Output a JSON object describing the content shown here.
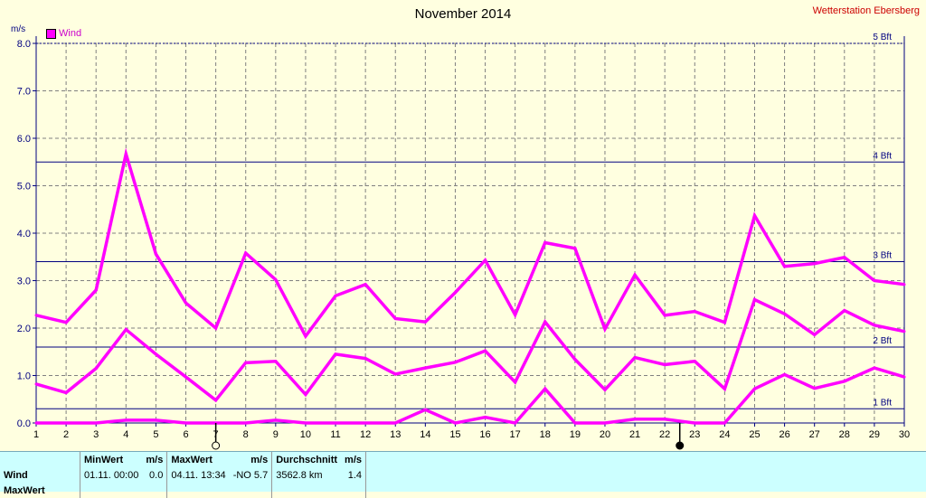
{
  "header": {
    "title": "November 2014",
    "station": "Wetterstation Ebersberg",
    "unit": "m/s"
  },
  "legend": {
    "label": "Wind",
    "color": "#ff00ff"
  },
  "chart_data": {
    "type": "line",
    "title": "November 2014",
    "ylabel": "m/s",
    "xlim": [
      1,
      30
    ],
    "ylim": [
      0,
      8
    ],
    "x": [
      1,
      2,
      3,
      4,
      5,
      6,
      7,
      8,
      9,
      10,
      11,
      12,
      13,
      14,
      15,
      16,
      17,
      18,
      19,
      20,
      21,
      22,
      23,
      24,
      25,
      26,
      27,
      28,
      29,
      30
    ],
    "x_tick_labels": [
      "1",
      "2",
      "3",
      "4",
      "5",
      "6",
      "7",
      "8",
      "9",
      "10",
      "11",
      "12",
      "13",
      "14",
      "15",
      "16",
      "17",
      "18",
      "19",
      "20",
      "21",
      "22",
      "23",
      "24",
      "25",
      "26",
      "27",
      "28",
      "29",
      "30"
    ],
    "y_ticks": [
      0,
      1,
      2,
      3,
      4,
      5,
      6,
      7,
      8
    ],
    "y_tick_labels": [
      "0.0",
      "1.0",
      "2.0",
      "3.0",
      "4.0",
      "5.0",
      "6.0",
      "7.0",
      "8.0"
    ],
    "grid": true,
    "legend_placement": "top-left",
    "series": [
      {
        "role": "max",
        "color": "#ff00ff",
        "values": [
          2.27,
          2.12,
          2.8,
          5.67,
          3.56,
          2.53,
          2.0,
          3.58,
          3.02,
          1.83,
          2.68,
          2.92,
          2.2,
          2.13,
          2.75,
          3.43,
          2.28,
          3.8,
          3.68,
          1.98,
          3.12,
          2.27,
          2.35,
          2.12,
          4.37,
          3.3,
          3.36,
          3.49,
          3.0,
          2.92
        ]
      },
      {
        "name": "Wind",
        "role": "mean",
        "color": "#ff00ff",
        "values": [
          0.82,
          0.64,
          1.15,
          1.97,
          1.45,
          0.97,
          0.48,
          1.27,
          1.3,
          0.6,
          1.45,
          1.36,
          1.03,
          1.16,
          1.28,
          1.52,
          0.86,
          2.13,
          1.34,
          0.7,
          1.38,
          1.23,
          1.3,
          0.72,
          2.6,
          2.3,
          1.86,
          2.37,
          2.06,
          1.93
        ]
      },
      {
        "role": "min",
        "color": "#ff00ff",
        "values": [
          0.0,
          0.0,
          0.0,
          0.06,
          0.06,
          0.0,
          0.0,
          0.0,
          0.06,
          0.0,
          0.0,
          0.0,
          0.0,
          0.28,
          0.0,
          0.12,
          0.0,
          0.72,
          0.0,
          0.0,
          0.08,
          0.08,
          0.0,
          0.0,
          0.72,
          1.02,
          0.73,
          0.88,
          1.16,
          0.97
        ]
      }
    ],
    "reference_lines": [
      {
        "label": "5 Bft",
        "value": 8.0,
        "style": "dotted"
      },
      {
        "label": "4 Bft",
        "value": 5.5,
        "style": "solid"
      },
      {
        "label": "3 Bft",
        "value": 3.4,
        "style": "solid"
      },
      {
        "label": "2 Bft",
        "value": 1.6,
        "style": "solid"
      },
      {
        "label": "1 Bft",
        "value": 0.3,
        "style": "solid"
      }
    ],
    "axis_color": "#000080",
    "grid_color": "#808080",
    "reference_line_color": "#000080"
  },
  "moon_markers": [
    {
      "day": 7,
      "phase": "full"
    },
    {
      "day": 22.5,
      "phase": "new"
    }
  ],
  "stats": {
    "headers": {
      "min": "MinWert",
      "min_unit": "m/s",
      "max": "MaxWert",
      "max_unit": "m/s",
      "avg": "Durchschnitt",
      "avg_unit": "m/s"
    },
    "rows": [
      {
        "label": "Wind",
        "min_time": "01.11.  00:00",
        "min_val": "0.0",
        "max_time": "04.11.  13:34",
        "max_val": "-NO 5.7",
        "avg_extra": "3562.8 km",
        "avg_val": "1.4"
      },
      {
        "label": "MaxWert"
      }
    ]
  }
}
